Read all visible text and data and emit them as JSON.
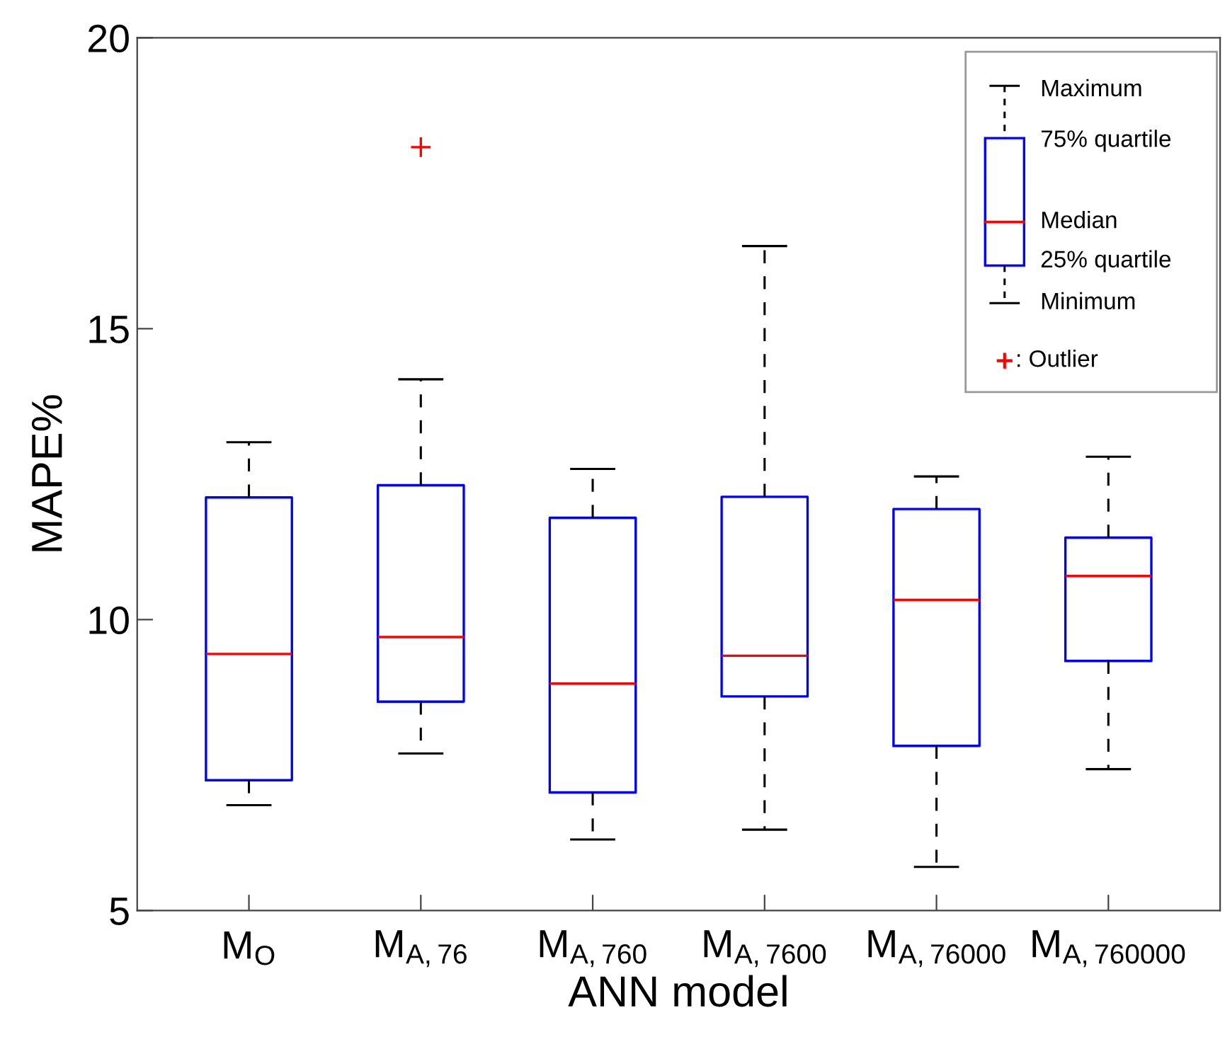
{
  "chart_data": {
    "type": "box",
    "xlabel": "ANN model",
    "ylabel": "MAPE%",
    "categories": [
      "M$_{O}$",
      "M$_{A,76}$",
      "M$_{A,760}$",
      "M$_{A,7600}$",
      "M$_{A,76000}$",
      "M$_{A,760000}$"
    ],
    "boxes": [
      {
        "low": 6.81,
        "q1": 7.24,
        "median": 9.41,
        "q3": 12.1,
        "high": 13.05
      },
      {
        "low": 7.7,
        "q1": 8.59,
        "median": 9.7,
        "q3": 12.31,
        "high": 14.13,
        "outliers": [
          18.12
        ]
      },
      {
        "low": 6.22,
        "q1": 7.03,
        "median": 8.9,
        "q3": 11.75,
        "high": 12.59
      },
      {
        "low": 6.39,
        "q1": 8.68,
        "median": 9.38,
        "q3": 12.11,
        "high": 16.42
      },
      {
        "low": 5.75,
        "q1": 7.83,
        "median": 10.34,
        "q3": 11.9,
        "high": 12.46
      },
      {
        "low": 7.43,
        "q1": 9.29,
        "median": 10.75,
        "q3": 11.41,
        "high": 12.8
      }
    ],
    "color": "#0000ff",
    "ylim": [
      5,
      20
    ],
    "yticks": [
      5,
      10,
      15,
      20
    ],
    "grid": false,
    "legend": false,
    "annotations": [
      "Maximum",
      "75% quartile",
      "Median",
      "25% quartile",
      "Minimum",
      ": Outlier"
    ]
  }
}
